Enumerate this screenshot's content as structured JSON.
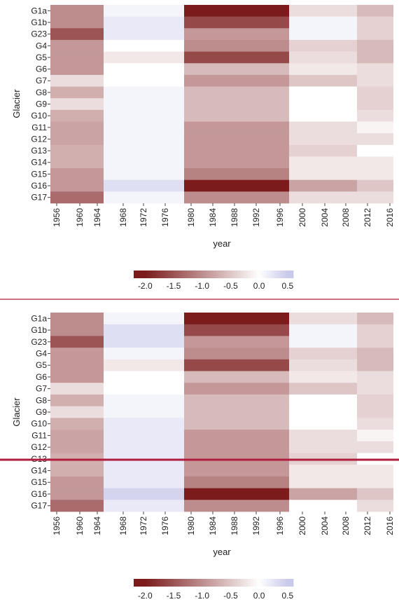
{
  "colors": {
    "neg_end": "#7b1b1b",
    "mid": "#ffffff",
    "pos_end": "#c9c9eb",
    "divider": "#b01c3c",
    "cell_border": "#ffffff"
  },
  "chart_data": [
    {
      "type": "heatmap",
      "title": "",
      "xlabel": "year",
      "ylabel": "Glacier",
      "x_ticks": [
        "1956",
        "1960",
        "1964",
        "1968",
        "1972",
        "1976",
        "1980",
        "1984",
        "1988",
        "1992",
        "1996",
        "2000",
        "2004",
        "2008",
        "2012",
        "2016"
      ],
      "y_categories": [
        "G1a",
        "G1b",
        "G23",
        "G4",
        "G5",
        "G6",
        "G7",
        "G8",
        "G9",
        "G10",
        "G11",
        "G12",
        "G13",
        "G14",
        "G15",
        "G16",
        "G17"
      ],
      "periods": [
        "1956-1964",
        "1964-1980",
        "1980-1997",
        "1997-2010",
        "2010-2016"
      ],
      "values": [
        [
          -1.0,
          0.1,
          -2.0,
          -0.3,
          -0.6
        ],
        [
          -1.0,
          0.2,
          -1.6,
          0.1,
          -0.4
        ],
        [
          -1.5,
          0.2,
          -0.9,
          0.1,
          -0.4
        ],
        [
          -0.9,
          0.0,
          -1.0,
          -0.4,
          -0.6
        ],
        [
          -0.9,
          -0.2,
          -1.6,
          -0.3,
          -0.6
        ],
        [
          -0.9,
          0.0,
          -0.6,
          -0.2,
          -0.3
        ],
        [
          -0.3,
          0.0,
          -0.9,
          -0.5,
          -0.3
        ],
        [
          -0.7,
          0.1,
          -0.6,
          0.0,
          -0.4
        ],
        [
          -0.3,
          0.1,
          -0.6,
          0.0,
          -0.4
        ],
        [
          -0.7,
          0.1,
          -0.6,
          0.0,
          -0.3
        ],
        [
          -0.8,
          0.1,
          -0.9,
          -0.3,
          -0.1
        ],
        [
          -0.8,
          0.1,
          -0.9,
          -0.3,
          -0.3
        ],
        [
          -0.7,
          0.1,
          -0.9,
          -0.4,
          0.0
        ],
        [
          -0.7,
          0.1,
          -0.9,
          -0.2,
          -0.2
        ],
        [
          -0.9,
          0.1,
          -1.1,
          -0.2,
          -0.2
        ],
        [
          -0.9,
          0.3,
          -2.0,
          -0.8,
          -0.5
        ],
        [
          -1.3,
          0.1,
          -1.0,
          -0.3,
          -0.3
        ]
      ],
      "colorbar": {
        "ticks": [
          "-2.0",
          "-1.5",
          "-1.0",
          "-0.5",
          "0.0",
          "0.5"
        ],
        "range": [
          -2.2,
          0.6
        ]
      }
    },
    {
      "type": "heatmap",
      "title": "",
      "xlabel": "year",
      "ylabel": "Glacier",
      "x_ticks": [
        "1956",
        "1960",
        "1964",
        "1968",
        "1972",
        "1976",
        "1980",
        "1984",
        "1988",
        "1992",
        "1996",
        "2000",
        "2004",
        "2008",
        "2012",
        "2016"
      ],
      "y_categories": [
        "G1a",
        "G1b",
        "G23",
        "G4",
        "G5",
        "G6",
        "G7",
        "G8",
        "G9",
        "G10",
        "G11",
        "G12",
        "G13",
        "G14",
        "G15",
        "G16",
        "G17"
      ],
      "periods": [
        "1956-1964",
        "1964-1980",
        "1980-1997",
        "1997-2010",
        "2010-2016"
      ],
      "values": [
        [
          -1.0,
          0.1,
          -2.0,
          -0.3,
          -0.6
        ],
        [
          -1.0,
          0.3,
          -1.6,
          0.1,
          -0.4
        ],
        [
          -1.5,
          0.3,
          -0.9,
          0.1,
          -0.4
        ],
        [
          -0.9,
          0.1,
          -1.0,
          -0.4,
          -0.6
        ],
        [
          -0.9,
          -0.2,
          -1.6,
          -0.3,
          -0.6
        ],
        [
          -0.9,
          0.0,
          -0.6,
          -0.2,
          -0.3
        ],
        [
          -0.3,
          0.0,
          -0.9,
          -0.5,
          -0.3
        ],
        [
          -0.7,
          0.1,
          -0.6,
          0.0,
          -0.4
        ],
        [
          -0.3,
          0.1,
          -0.6,
          0.0,
          -0.4
        ],
        [
          -0.7,
          0.2,
          -0.6,
          0.0,
          -0.3
        ],
        [
          -0.8,
          0.2,
          -0.9,
          -0.3,
          -0.1
        ],
        [
          -0.8,
          0.2,
          -0.9,
          -0.3,
          -0.3
        ],
        [
          -0.7,
          0.2,
          -0.9,
          -0.4,
          0.0
        ],
        [
          -0.7,
          0.2,
          -0.9,
          -0.2,
          -0.2
        ],
        [
          -0.9,
          0.2,
          -1.1,
          -0.2,
          -0.2
        ],
        [
          -0.9,
          0.4,
          -2.0,
          -0.8,
          -0.5
        ],
        [
          -1.3,
          0.2,
          -1.0,
          0.0,
          -0.3
        ]
      ],
      "colorbar": {
        "ticks": [
          "-2.0",
          "-1.5",
          "-1.0",
          "-0.5",
          "0.0",
          "0.5"
        ],
        "range": [
          -2.2,
          0.6
        ]
      }
    }
  ]
}
